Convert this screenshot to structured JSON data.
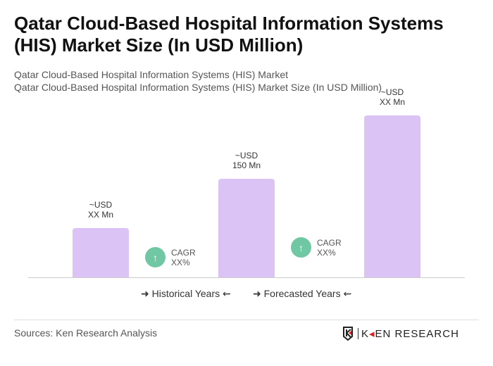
{
  "title": "Qatar Cloud-Based Hospital Information Systems (HIS) Market Size (In USD Million)",
  "subtitle1": "Qatar Cloud-Based Hospital Information Systems (HIS) Market",
  "subtitle2": "Qatar Cloud-Based Hospital Information Systems (HIS) Market Size (In USD Million)",
  "chart_data": {
    "type": "bar",
    "values": [
      null,
      150,
      null
    ],
    "labels": [
      [
        "~USD",
        "XX Mn"
      ],
      [
        "~USD",
        "150 Mn"
      ],
      [
        "~USD",
        "XX Mn"
      ]
    ],
    "cagr": [
      {
        "label": "CAGR",
        "value": "XX%"
      },
      {
        "label": "CAGR",
        "value": "XX%"
      }
    ],
    "legend": [
      "Historical Years",
      "Forecasted Years"
    ],
    "bar_color": "#dcc3f6",
    "cagr_color": "#6fc7a3"
  },
  "source": "Sources: Ken Research Analysis",
  "logo": "KEN RESEARCH"
}
